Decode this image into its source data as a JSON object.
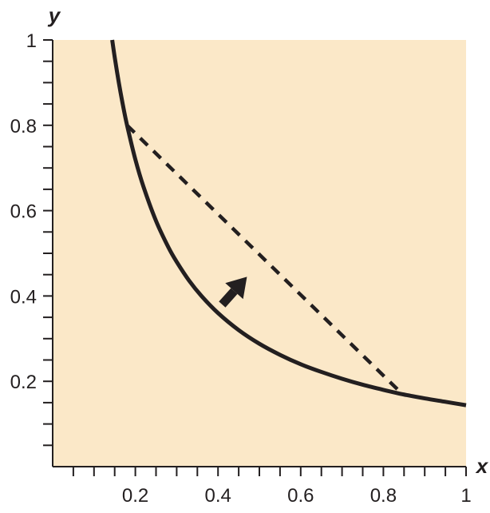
{
  "chart_data": {
    "type": "line",
    "title": "",
    "xlabel": "x",
    "ylabel": "y",
    "xlim": [
      0,
      1
    ],
    "ylim": [
      0,
      1
    ],
    "x_ticks": [
      "0.2",
      "0.4",
      "0.6",
      "0.8",
      "1"
    ],
    "y_ticks": [
      "0.2",
      "0.4",
      "0.6",
      "0.8",
      "1"
    ],
    "x_tick_values": [
      0.2,
      0.4,
      0.6,
      0.8,
      1
    ],
    "y_tick_values": [
      0.2,
      0.4,
      0.6,
      0.8,
      1
    ],
    "grid": false,
    "background_color": "#fbe8c8",
    "line_color": "#231f20",
    "series": [
      {
        "style": "solid",
        "x": [
          0.144,
          0.15,
          0.16,
          0.17,
          0.18,
          0.2,
          0.22,
          0.25,
          0.28,
          0.3,
          0.33,
          0.36,
          0.4,
          0.45,
          0.5,
          0.55,
          0.6,
          0.65,
          0.7,
          0.75,
          0.8,
          0.85,
          0.9,
          0.95,
          1.0
        ],
        "y": [
          1.0,
          0.96,
          0.9,
          0.847,
          0.8,
          0.72,
          0.655,
          0.576,
          0.514,
          0.48,
          0.436,
          0.4,
          0.36,
          0.32,
          0.288,
          0.262,
          0.24,
          0.222,
          0.206,
          0.192,
          0.18,
          0.169,
          0.16,
          0.152,
          0.144
        ]
      },
      {
        "style": "dashed",
        "x": [
          0.18,
          0.846
        ],
        "y": [
          0.8,
          0.17
        ]
      }
    ],
    "annotations": [
      {
        "type": "arrow",
        "from": [
          0.41,
          0.38
        ],
        "to": [
          0.47,
          0.445
        ]
      }
    ]
  }
}
